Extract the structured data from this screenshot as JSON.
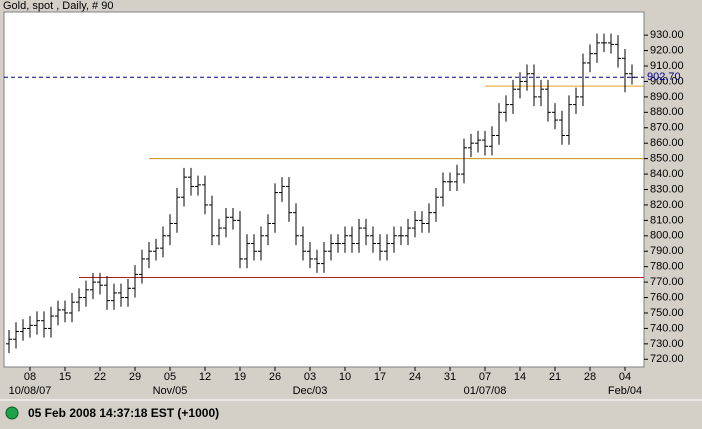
{
  "chart_data": {
    "type": "ohlc",
    "title": "Gold, spot , Daily, # 90",
    "status": "05 Feb 2008 14:37:18  EST (+1000)",
    "x": [
      "2007-10-03",
      "2007-10-04",
      "2007-10-05",
      "2007-10-08",
      "2007-10-09",
      "2007-10-10",
      "2007-10-11",
      "2007-10-12",
      "2007-10-15",
      "2007-10-16",
      "2007-10-17",
      "2007-10-18",
      "2007-10-19",
      "2007-10-22",
      "2007-10-23",
      "2007-10-24",
      "2007-10-25",
      "2007-10-26",
      "2007-10-29",
      "2007-10-30",
      "2007-10-31",
      "2007-11-01",
      "2007-11-02",
      "2007-11-05",
      "2007-11-06",
      "2007-11-07",
      "2007-11-08",
      "2007-11-09",
      "2007-11-12",
      "2007-11-13",
      "2007-11-14",
      "2007-11-15",
      "2007-11-16",
      "2007-11-19",
      "2007-11-20",
      "2007-11-21",
      "2007-11-22",
      "2007-11-23",
      "2007-11-26",
      "2007-11-27",
      "2007-11-28",
      "2007-11-29",
      "2007-11-30",
      "2007-12-03",
      "2007-12-04",
      "2007-12-05",
      "2007-12-06",
      "2007-12-07",
      "2007-12-10",
      "2007-12-11",
      "2007-12-12",
      "2007-12-13",
      "2007-12-14",
      "2007-12-17",
      "2007-12-18",
      "2007-12-19",
      "2007-12-20",
      "2007-12-21",
      "2007-12-24",
      "2007-12-25",
      "2007-12-26",
      "2007-12-27",
      "2007-12-28",
      "2007-12-31",
      "2008-01-01",
      "2008-01-02",
      "2008-01-03",
      "2008-01-04",
      "2008-01-07",
      "2008-01-08",
      "2008-01-09",
      "2008-01-10",
      "2008-01-11",
      "2008-01-14",
      "2008-01-15",
      "2008-01-16",
      "2008-01-17",
      "2008-01-18",
      "2008-01-21",
      "2008-01-22",
      "2008-01-23",
      "2008-01-24",
      "2008-01-25",
      "2008-01-28",
      "2008-01-29",
      "2008-01-30",
      "2008-01-31",
      "2008-02-01",
      "2008-02-04",
      "2008-02-05"
    ],
    "open": [
      730,
      733,
      738,
      740,
      742,
      745,
      740,
      748,
      752,
      750,
      757,
      760,
      765,
      770,
      768,
      758,
      763,
      760,
      766,
      775,
      785,
      790,
      792,
      800,
      808,
      825,
      838,
      832,
      833,
      820,
      800,
      805,
      812,
      810,
      785,
      795,
      790,
      800,
      808,
      828,
      832,
      815,
      800,
      790,
      785,
      782,
      790,
      795,
      795,
      800,
      795,
      805,
      800,
      795,
      790,
      795,
      800,
      800,
      805,
      810,
      808,
      815,
      825,
      835,
      835,
      840,
      857,
      860,
      862,
      858,
      865,
      880,
      885,
      895,
      900,
      905,
      890,
      895,
      880,
      875,
      865,
      885,
      890,
      912,
      918,
      925,
      925,
      924,
      915,
      905
    ],
    "high": [
      739,
      744,
      746,
      748,
      751,
      751,
      754,
      758,
      758,
      763,
      766,
      771,
      776,
      776,
      774,
      769,
      769,
      772,
      781,
      791,
      796,
      798,
      806,
      814,
      831,
      844,
      844,
      839,
      839,
      826,
      811,
      818,
      818,
      816,
      801,
      801,
      806,
      814,
      834,
      838,
      838,
      821,
      806,
      796,
      791,
      796,
      801,
      801,
      806,
      806,
      811,
      811,
      806,
      801,
      801,
      806,
      806,
      811,
      816,
      816,
      821,
      831,
      841,
      841,
      846,
      863,
      866,
      868,
      868,
      871,
      886,
      891,
      901,
      906,
      911,
      911,
      901,
      901,
      886,
      881,
      891,
      896,
      918,
      924,
      931,
      931,
      931,
      930,
      921,
      911
    ],
    "low": [
      724,
      727,
      732,
      734,
      736,
      734,
      734,
      742,
      744,
      744,
      751,
      754,
      759,
      762,
      752,
      752,
      754,
      754,
      760,
      769,
      779,
      784,
      786,
      794,
      802,
      819,
      826,
      826,
      814,
      794,
      794,
      799,
      804,
      779,
      779,
      784,
      784,
      794,
      802,
      822,
      809,
      794,
      784,
      779,
      776,
      776,
      784,
      789,
      789,
      789,
      789,
      794,
      789,
      784,
      784,
      789,
      794,
      794,
      799,
      802,
      802,
      809,
      819,
      829,
      829,
      834,
      851,
      854,
      852,
      852,
      859,
      874,
      879,
      889,
      894,
      884,
      884,
      874,
      869,
      859,
      859,
      879,
      884,
      906,
      912,
      919,
      918,
      909,
      893,
      898
    ],
    "close": [
      733,
      738,
      740,
      742,
      745,
      740,
      748,
      752,
      750,
      757,
      760,
      765,
      770,
      768,
      758,
      763,
      760,
      766,
      775,
      785,
      790,
      792,
      800,
      808,
      825,
      838,
      832,
      833,
      820,
      800,
      805,
      812,
      810,
      785,
      795,
      790,
      800,
      808,
      828,
      832,
      815,
      800,
      790,
      785,
      782,
      790,
      795,
      795,
      800,
      795,
      805,
      800,
      795,
      790,
      795,
      800,
      800,
      805,
      810,
      808,
      815,
      825,
      835,
      835,
      840,
      857,
      860,
      862,
      858,
      865,
      880,
      885,
      895,
      900,
      905,
      890,
      895,
      880,
      875,
      865,
      885,
      890,
      912,
      918,
      925,
      925,
      924,
      915,
      905,
      902.7
    ],
    "color": "#000000",
    "ylim": [
      715,
      945
    ],
    "yticks": [
      {
        "value": 720,
        "label": "720.00"
      },
      {
        "value": 730,
        "label": "730.00"
      },
      {
        "value": 740,
        "label": "740.00"
      },
      {
        "value": 750,
        "label": "750.00"
      },
      {
        "value": 760,
        "label": "760.00"
      },
      {
        "value": 770,
        "label": "770.00"
      },
      {
        "value": 780,
        "label": "780.00"
      },
      {
        "value": 790,
        "label": "790.00"
      },
      {
        "value": 800,
        "label": "800.00"
      },
      {
        "value": 810,
        "label": "810.00"
      },
      {
        "value": 820,
        "label": "820.00"
      },
      {
        "value": 830,
        "label": "830.00"
      },
      {
        "value": 840,
        "label": "840.00"
      },
      {
        "value": 850,
        "label": "850.00"
      },
      {
        "value": 860,
        "label": "860.00"
      },
      {
        "value": 870,
        "label": "870.00"
      },
      {
        "value": 880,
        "label": "880.00"
      },
      {
        "value": 890,
        "label": "890.00"
      },
      {
        "value": 900,
        "label": "900.00"
      },
      {
        "value": 910,
        "label": "910.00"
      },
      {
        "value": 920,
        "label": "920.00"
      },
      {
        "value": 930,
        "label": "930.00"
      }
    ],
    "xticks": [
      {
        "value": "2007-10-08",
        "label": "08"
      },
      {
        "value": "2007-10-15",
        "label": "15"
      },
      {
        "value": "2007-10-22",
        "label": "22"
      },
      {
        "value": "2007-10-29",
        "label": "29"
      },
      {
        "value": "2007-11-05",
        "label": "05"
      },
      {
        "value": "2007-11-12",
        "label": "12"
      },
      {
        "value": "2007-11-19",
        "label": "19"
      },
      {
        "value": "2007-11-26",
        "label": "26"
      },
      {
        "value": "2007-12-03",
        "label": "03"
      },
      {
        "value": "2007-12-10",
        "label": "10"
      },
      {
        "value": "2007-12-17",
        "label": "17"
      },
      {
        "value": "2007-12-24",
        "label": "24"
      },
      {
        "value": "2007-12-31",
        "label": "31"
      },
      {
        "value": "2008-01-07",
        "label": "07"
      },
      {
        "value": "2008-01-14",
        "label": "14"
      },
      {
        "value": "2008-01-21",
        "label": "21"
      },
      {
        "value": "2008-01-28",
        "label": "28"
      },
      {
        "value": "2008-02-04",
        "label": "04"
      }
    ],
    "xticks_major": [
      {
        "value": "2007-10-08",
        "label": "10/08/07"
      },
      {
        "value": "2007-11-05",
        "label": "Nov/05"
      },
      {
        "value": "2007-12-03",
        "label": "Dec/03"
      },
      {
        "value": "2008-01-07",
        "label": "01/07/08"
      },
      {
        "value": "2008-02-04",
        "label": "Feb/04"
      }
    ],
    "last": {
      "value": 902.7,
      "label": "902.70",
      "color": "#00008b"
    },
    "hlines": [
      {
        "value": 773,
        "start": "2007-10-17",
        "color": "#b22222"
      },
      {
        "value": 850,
        "start": "2007-10-31",
        "color": "#c8900a"
      },
      {
        "value": 897,
        "start": "2008-01-07",
        "color": "#e8a020"
      }
    ]
  }
}
